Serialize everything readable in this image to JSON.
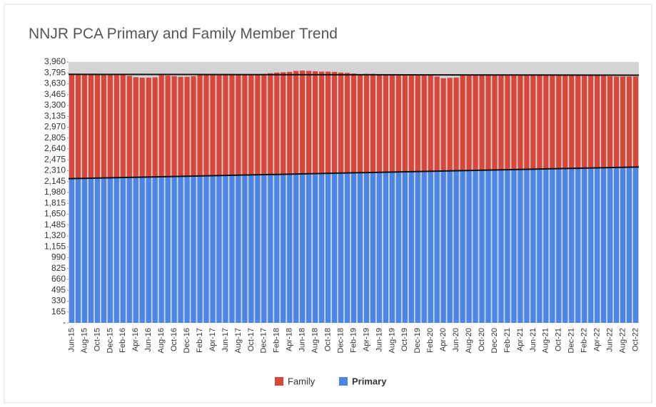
{
  "chart_data": {
    "type": "stacked_bar",
    "title": "NNJR PCA Primary and Family Member Trend",
    "categories": [
      "Jun-15",
      null,
      "Aug-15",
      null,
      "Oct-15",
      null,
      "Dec-15",
      null,
      "Feb-16",
      null,
      "Apr-16",
      null,
      "Jun-16",
      null,
      "Aug-16",
      null,
      "Oct-16",
      null,
      "Dec-16",
      null,
      "Feb-17",
      null,
      "Apr-17",
      null,
      "Jun-17",
      null,
      "Aug-17",
      null,
      "Oct-17",
      null,
      "Dec-17",
      null,
      "Feb-18",
      null,
      "Apr-18",
      null,
      "Jun-18",
      null,
      "Aug-18",
      null,
      "Oct-18",
      null,
      "Dec-18",
      null,
      "Feb-19",
      null,
      "Apr-19",
      null,
      "Jun-19",
      null,
      "Aug-19",
      null,
      "Oct-19",
      null,
      "Dec-19",
      null,
      "Feb-20",
      null,
      "Apr-20",
      null,
      "Jun-20",
      null,
      "Aug-20",
      null,
      "Oct-20",
      null,
      "Dec-20",
      null,
      "Feb-21",
      null,
      "Apr-21",
      null,
      "Jun-21",
      null,
      "Aug-21",
      null,
      "Oct-21",
      null,
      "Dec-21",
      null,
      "Feb-22",
      null,
      "Apr-22",
      null,
      "Jun-22",
      null,
      "Aug-22",
      null,
      "Oct-22"
    ],
    "series": [
      {
        "name": "Primary",
        "color": "#4a86e8",
        "values": [
          2190,
          2192,
          2194,
          2196,
          2198,
          2200,
          2202,
          2204,
          2206,
          2208,
          2210,
          2212,
          2214,
          2216,
          2218,
          2220,
          2222,
          2224,
          2226,
          2228,
          2230,
          2232,
          2234,
          2236,
          2238,
          2240,
          2242,
          2244,
          2246,
          2248,
          2250,
          2252,
          2254,
          2256,
          2258,
          2260,
          2262,
          2264,
          2266,
          2268,
          2270,
          2272,
          2274,
          2276,
          2278,
          2280,
          2282,
          2284,
          2286,
          2288,
          2290,
          2292,
          2294,
          2296,
          2298,
          2300,
          2302,
          2304,
          2306,
          2308,
          2310,
          2312,
          2314,
          2316,
          2318,
          2320,
          2322,
          2324,
          2326,
          2328,
          2330,
          2332,
          2334,
          2336,
          2338,
          2340,
          2342,
          2344,
          2346,
          2348,
          2350,
          2352,
          2354,
          2356,
          2358,
          2360,
          2362,
          2364,
          2366
        ]
      },
      {
        "name": "Family",
        "color": "#d9473b",
        "values": [
          1585,
          1583,
          1581,
          1574,
          1572,
          1570,
          1563,
          1556,
          1554,
          1542,
          1520,
          1511,
          1509,
          1512,
          1540,
          1533,
          1524,
          1512,
          1510,
          1517,
          1540,
          1538,
          1536,
          1539,
          1532,
          1530,
          1528,
          1526,
          1524,
          1527,
          1530,
          1538,
          1546,
          1549,
          1552,
          1565,
          1568,
          1561,
          1554,
          1547,
          1545,
          1538,
          1526,
          1519,
          1507,
          1495,
          1498,
          1496,
          1489,
          1482,
          1480,
          1478,
          1476,
          1469,
          1467,
          1465,
          1458,
          1436,
          1409,
          1412,
          1415,
          1448,
          1456,
          1454,
          1452,
          1450,
          1443,
          1441,
          1434,
          1432,
          1430,
          1428,
          1426,
          1424,
          1422,
          1420,
          1418,
          1416,
          1414,
          1412,
          1410,
          1408,
          1401,
          1394,
          1387,
          1380,
          1378,
          1376,
          1374
        ]
      }
    ],
    "ylim": [
      0,
      3960
    ],
    "yticks": [
      {
        "value": 0,
        "label": "-"
      },
      165,
      330,
      495,
      660,
      825,
      990,
      {
        "value": 1155,
        "label": "1,155"
      },
      {
        "value": 1320,
        "label": "1,320"
      },
      {
        "value": 1485,
        "label": "1,485"
      },
      {
        "value": 1650,
        "label": "1,650"
      },
      {
        "value": 1815,
        "label": "1,815"
      },
      {
        "value": 1980,
        "label": "1,980"
      },
      {
        "value": 2145,
        "label": "2,145"
      },
      {
        "value": 2310,
        "label": "2,310"
      },
      {
        "value": 2475,
        "label": "2,475"
      },
      {
        "value": 2640,
        "label": "2,640"
      },
      {
        "value": 2805,
        "label": "2,805"
      },
      {
        "value": 2970,
        "label": "2,970"
      },
      {
        "value": 3135,
        "label": "3,135"
      },
      {
        "value": 3300,
        "label": "3,300"
      },
      {
        "value": 3465,
        "label": "3,465"
      },
      {
        "value": 3630,
        "label": "3,630"
      },
      {
        "value": 3795,
        "label": "3,795"
      },
      {
        "value": 3960,
        "label": "3,960"
      }
    ],
    "trendlines": true,
    "legend": "bottom"
  }
}
